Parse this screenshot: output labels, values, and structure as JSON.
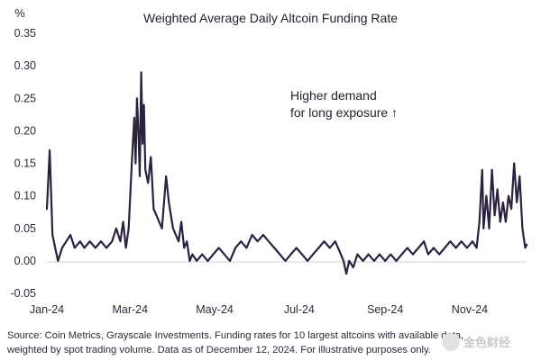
{
  "chart_data": {
    "type": "line",
    "title": "Weighted Average Daily Altcoin Funding Rate",
    "ylabel": "%",
    "xlabel": "",
    "ylim": [
      -0.05,
      0.35
    ],
    "y_ticks": [
      "0.35",
      "0.30",
      "0.25",
      "0.20",
      "0.15",
      "0.10",
      "0.05",
      "0.00",
      "-0.05"
    ],
    "x_ticks": [
      "Jan-24",
      "Mar-24",
      "May-24",
      "Jul-24",
      "Sep-24",
      "Nov-24"
    ],
    "x_start": "2024-01-01",
    "x_end": "2024-12-12",
    "grid": false,
    "annotation": {
      "line1": "Higher demand",
      "line2": "for long exposure ↑"
    },
    "source_line1": "Source: Coin Metrics, Grayscale Investments. Funding rates for 10 largest altcoins with available data,",
    "source_line2": "weighted by spot trading volume. Data as of December 12, 2024. For illustrative purposes only.",
    "series": [
      {
        "color": "#2b2140",
        "points": [
          [
            "2024-01-01",
            0.08
          ],
          [
            "2024-01-03",
            0.17
          ],
          [
            "2024-01-05",
            0.04
          ],
          [
            "2024-01-07",
            0.02
          ],
          [
            "2024-01-09",
            0.0
          ],
          [
            "2024-01-12",
            0.02
          ],
          [
            "2024-01-15",
            0.03
          ],
          [
            "2024-01-18",
            0.04
          ],
          [
            "2024-01-21",
            0.02
          ],
          [
            "2024-01-25",
            0.03
          ],
          [
            "2024-01-28",
            0.02
          ],
          [
            "2024-02-01",
            0.03
          ],
          [
            "2024-02-05",
            0.02
          ],
          [
            "2024-02-09",
            0.03
          ],
          [
            "2024-02-13",
            0.02
          ],
          [
            "2024-02-17",
            0.03
          ],
          [
            "2024-02-20",
            0.05
          ],
          [
            "2024-02-23",
            0.03
          ],
          [
            "2024-02-25",
            0.06
          ],
          [
            "2024-02-27",
            0.02
          ],
          [
            "2024-02-29",
            0.05
          ],
          [
            "2024-03-02",
            0.14
          ],
          [
            "2024-03-04",
            0.22
          ],
          [
            "2024-03-05",
            0.15
          ],
          [
            "2024-03-06",
            0.25
          ],
          [
            "2024-03-07",
            0.2
          ],
          [
            "2024-03-08",
            0.13
          ],
          [
            "2024-03-09",
            0.29
          ],
          [
            "2024-03-10",
            0.18
          ],
          [
            "2024-03-11",
            0.24
          ],
          [
            "2024-03-12",
            0.14
          ],
          [
            "2024-03-14",
            0.12
          ],
          [
            "2024-03-16",
            0.16
          ],
          [
            "2024-03-18",
            0.08
          ],
          [
            "2024-03-20",
            0.07
          ],
          [
            "2024-03-22",
            0.06
          ],
          [
            "2024-03-24",
            0.05
          ],
          [
            "2024-03-27",
            0.13
          ],
          [
            "2024-03-29",
            0.09
          ],
          [
            "2024-04-01",
            0.05
          ],
          [
            "2024-04-03",
            0.04
          ],
          [
            "2024-04-05",
            0.03
          ],
          [
            "2024-04-07",
            0.06
          ],
          [
            "2024-04-09",
            0.02
          ],
          [
            "2024-04-11",
            0.03
          ],
          [
            "2024-04-13",
            0.0
          ],
          [
            "2024-04-15",
            0.01
          ],
          [
            "2024-04-18",
            0.0
          ],
          [
            "2024-04-22",
            0.01
          ],
          [
            "2024-04-26",
            0.0
          ],
          [
            "2024-04-30",
            0.01
          ],
          [
            "2024-05-04",
            0.02
          ],
          [
            "2024-05-08",
            0.01
          ],
          [
            "2024-05-12",
            0.0
          ],
          [
            "2024-05-16",
            0.02
          ],
          [
            "2024-05-20",
            0.03
          ],
          [
            "2024-05-24",
            0.02
          ],
          [
            "2024-05-28",
            0.04
          ],
          [
            "2024-06-01",
            0.03
          ],
          [
            "2024-06-05",
            0.04
          ],
          [
            "2024-06-09",
            0.03
          ],
          [
            "2024-06-13",
            0.02
          ],
          [
            "2024-06-17",
            0.01
          ],
          [
            "2024-06-21",
            0.0
          ],
          [
            "2024-06-25",
            0.01
          ],
          [
            "2024-06-29",
            0.02
          ],
          [
            "2024-07-03",
            0.01
          ],
          [
            "2024-07-07",
            0.0
          ],
          [
            "2024-07-11",
            0.01
          ],
          [
            "2024-07-15",
            0.02
          ],
          [
            "2024-07-19",
            0.03
          ],
          [
            "2024-07-23",
            0.02
          ],
          [
            "2024-07-27",
            0.03
          ],
          [
            "2024-07-31",
            0.01
          ],
          [
            "2024-08-02",
            0.0
          ],
          [
            "2024-08-04",
            -0.02
          ],
          [
            "2024-08-06",
            0.0
          ],
          [
            "2024-08-09",
            -0.01
          ],
          [
            "2024-08-12",
            0.01
          ],
          [
            "2024-08-16",
            0.0
          ],
          [
            "2024-08-20",
            0.01
          ],
          [
            "2024-08-24",
            0.0
          ],
          [
            "2024-08-28",
            0.01
          ],
          [
            "2024-09-01",
            0.0
          ],
          [
            "2024-09-05",
            0.01
          ],
          [
            "2024-09-09",
            0.0
          ],
          [
            "2024-09-13",
            0.01
          ],
          [
            "2024-09-17",
            0.02
          ],
          [
            "2024-09-21",
            0.01
          ],
          [
            "2024-09-25",
            0.02
          ],
          [
            "2024-09-29",
            0.03
          ],
          [
            "2024-10-02",
            0.01
          ],
          [
            "2024-10-06",
            0.02
          ],
          [
            "2024-10-10",
            0.01
          ],
          [
            "2024-10-14",
            0.02
          ],
          [
            "2024-10-18",
            0.03
          ],
          [
            "2024-10-22",
            0.02
          ],
          [
            "2024-10-26",
            0.03
          ],
          [
            "2024-10-30",
            0.02
          ],
          [
            "2024-11-03",
            0.03
          ],
          [
            "2024-11-06",
            0.02
          ],
          [
            "2024-11-08",
            0.06
          ],
          [
            "2024-11-10",
            0.14
          ],
          [
            "2024-11-11",
            0.05
          ],
          [
            "2024-11-13",
            0.1
          ],
          [
            "2024-11-15",
            0.05
          ],
          [
            "2024-11-17",
            0.14
          ],
          [
            "2024-11-19",
            0.07
          ],
          [
            "2024-11-21",
            0.11
          ],
          [
            "2024-11-23",
            0.06
          ],
          [
            "2024-11-25",
            0.09
          ],
          [
            "2024-11-27",
            0.06
          ],
          [
            "2024-11-29",
            0.1
          ],
          [
            "2024-12-01",
            0.08
          ],
          [
            "2024-12-03",
            0.15
          ],
          [
            "2024-12-05",
            0.09
          ],
          [
            "2024-12-07",
            0.13
          ],
          [
            "2024-12-09",
            0.05
          ],
          [
            "2024-12-11",
            0.02
          ],
          [
            "2024-12-12",
            0.025
          ]
        ]
      }
    ]
  },
  "watermark": "金色财经"
}
